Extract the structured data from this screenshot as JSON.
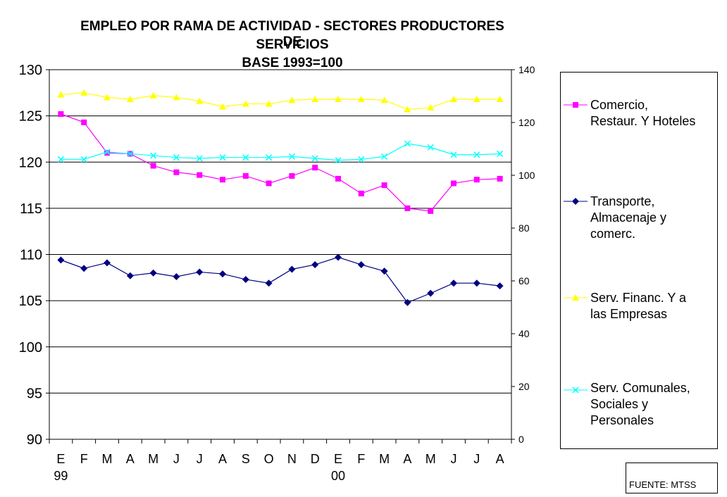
{
  "chart_data": {
    "type": "line",
    "title": [
      "EMPLEO POR RAMA DE ACTIVIDAD - SECTORES PRODUCTORES DE",
      "SERVICIOS",
      "BASE 1993=100"
    ],
    "source": "FUENTE: MTSS",
    "categories": [
      "E",
      "F",
      "M",
      "A",
      "M",
      "J",
      "J",
      "A",
      "S",
      "O",
      "N",
      "D",
      "E",
      "F",
      "M",
      "A",
      "M",
      "J",
      "J",
      "A"
    ],
    "year_labels": [
      {
        "index": 0,
        "label": "99"
      },
      {
        "index": 12,
        "label": "00"
      }
    ],
    "y_left": {
      "min": 90,
      "max": 130,
      "ticks": [
        130,
        125,
        120,
        115,
        110,
        105,
        100,
        95,
        90
      ]
    },
    "y_right": {
      "min": 0,
      "max": 140,
      "ticks": [
        140,
        120,
        100,
        80,
        60,
        40,
        20,
        0
      ]
    },
    "grid": "horizontal",
    "legend_position": "right",
    "series": [
      {
        "name": "Comercio, Restaur. Y Hoteles",
        "legend_lines": [
          "Comercio,",
          "Restaur. Y Hoteles"
        ],
        "color": "#ff00ff",
        "marker": "square",
        "axis": "left",
        "values": [
          125.2,
          124.3,
          121.0,
          120.9,
          119.6,
          118.9,
          118.6,
          118.1,
          118.5,
          117.7,
          118.5,
          119.4,
          118.2,
          116.6,
          117.5,
          115.0,
          114.7,
          117.7,
          118.1,
          118.2
        ]
      },
      {
        "name": "Transporte, Almacenaje y comerc.",
        "legend_lines": [
          "Transporte,",
          "Almacenaje y",
          "comerc."
        ],
        "color": "#000080",
        "marker": "diamond",
        "axis": "left",
        "values": [
          109.4,
          108.5,
          109.1,
          107.7,
          108.0,
          107.6,
          108.1,
          107.9,
          107.3,
          106.9,
          108.4,
          108.9,
          109.7,
          108.9,
          108.2,
          104.8,
          105.8,
          106.9,
          106.9,
          106.6
        ]
      },
      {
        "name": "Serv. Financ. Y a las Empresas",
        "legend_lines": [
          "Serv. Financ. Y a",
          "las Empresas"
        ],
        "color": "#ffff00",
        "marker": "triangle",
        "axis": "left",
        "values": [
          127.3,
          127.5,
          127.0,
          126.8,
          127.2,
          127.0,
          126.6,
          126.0,
          126.3,
          126.3,
          126.7,
          126.8,
          126.8,
          126.8,
          126.7,
          125.7,
          125.9,
          126.8,
          126.8,
          126.8
        ]
      },
      {
        "name": "Serv. Comunales, Sociales y Personales",
        "legend_lines": [
          "Serv. Comunales,",
          "Sociales y",
          "Personales"
        ],
        "color": "#00ffff",
        "marker": "x",
        "axis": "left",
        "values": [
          120.3,
          120.3,
          121.1,
          120.9,
          120.7,
          120.5,
          120.4,
          120.5,
          120.5,
          120.5,
          120.6,
          120.4,
          120.2,
          120.3,
          120.6,
          122.0,
          121.6,
          120.8,
          120.8,
          120.9
        ]
      }
    ]
  }
}
